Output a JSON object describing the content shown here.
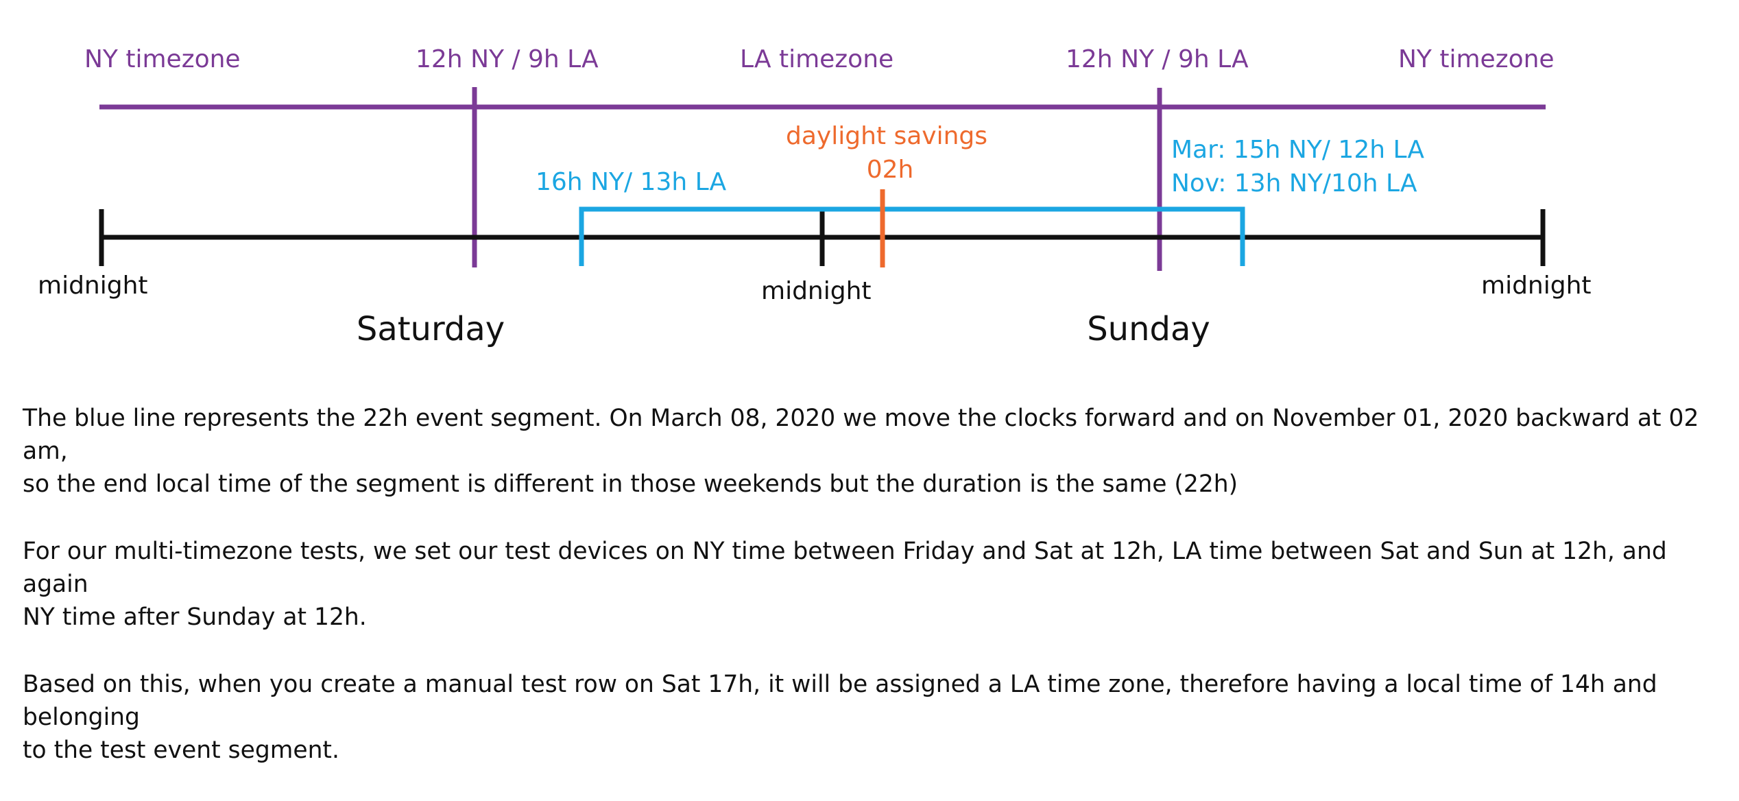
{
  "colors": {
    "ny_la_timezone": "#7b3a96",
    "event_segment": "#1ba6e2",
    "daylight_savings": "#ee6a2d",
    "day_axis": "#111111"
  },
  "timezone_labels": {
    "ny_start": "NY timezone",
    "switch_1": "12h NY / 9h LA",
    "la": "LA timezone",
    "switch_2": "12h NY / 9h LA",
    "ny_end": "NY timezone"
  },
  "segment_labels": {
    "start": "16h NY/ 13h LA",
    "end_march": "Mar: 15h NY/ 12h LA",
    "end_november": "Nov: 13h NY/10h LA"
  },
  "daylight_savings": {
    "label": "daylight savings",
    "time": "02h"
  },
  "axis_labels": {
    "midnight_left": "midnight",
    "midnight_mid": "midnight",
    "midnight_right": "midnight",
    "day_1": "Saturday",
    "day_2": "Sunday"
  },
  "paragraphs": [
    "The blue line represents the 22h event segment. On March 08, 2020 we move the clocks forward and on November 01, 2020 backward at 02 am,\nso the end local time of the segment is different in those weekends but the duration is the same (22h)",
    "For our multi-timezone tests, we set our test devices on NY time between Friday and Sat at 12h, LA time between Sat and Sun at 12h, and again\nNY time after Sunday at 12h.",
    "Based on this, when you create a manual test row on Sat 17h, it will be assigned a LA time zone, therefore having a local time of 14h and belonging\nto the test event segment."
  ]
}
